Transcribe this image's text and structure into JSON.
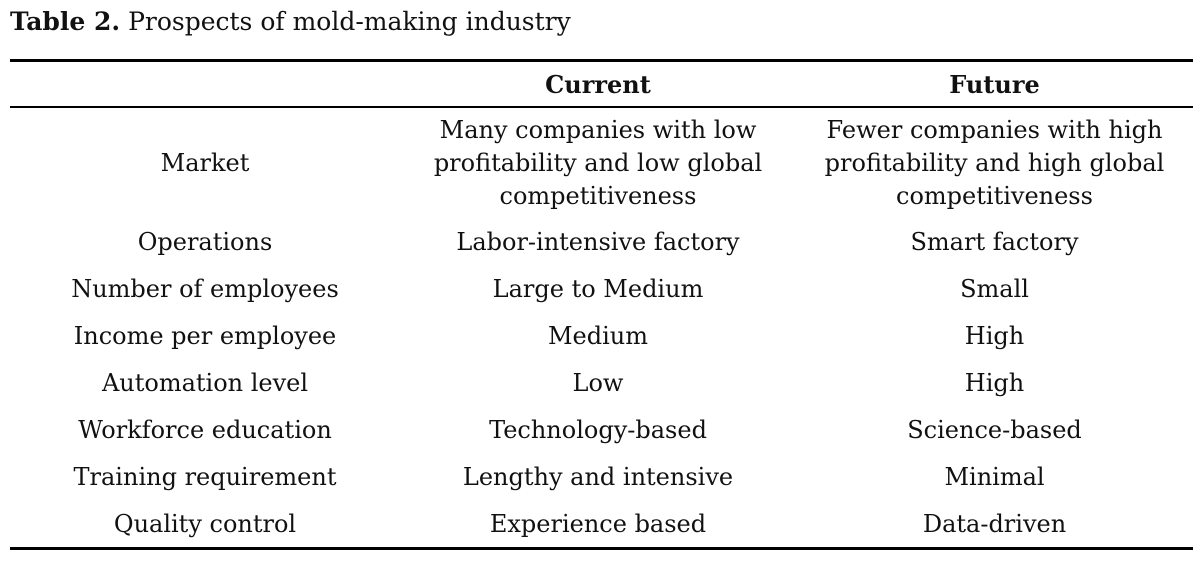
{
  "caption": {
    "label": "Table 2.",
    "title": "Prospects of mold-making industry"
  },
  "table": {
    "headers": [
      "",
      "Current",
      "Future"
    ],
    "rows": [
      [
        "Market",
        "Many companies with low profitability and low global competitiveness",
        "Fewer companies with high profitability and high global competitiveness"
      ],
      [
        "Operations",
        "Labor-intensive factory",
        "Smart factory"
      ],
      [
        "Number of employees",
        "Large to Medium",
        "Small"
      ],
      [
        "Income per employee",
        "Medium",
        "High"
      ],
      [
        "Automation level",
        "Low",
        "High"
      ],
      [
        "Workforce education",
        "Technology-based",
        "Science-based"
      ],
      [
        "Training requirement",
        "Lengthy and intensive",
        "Minimal"
      ],
      [
        "Quality control",
        "Experience based",
        "Data-driven"
      ]
    ]
  }
}
